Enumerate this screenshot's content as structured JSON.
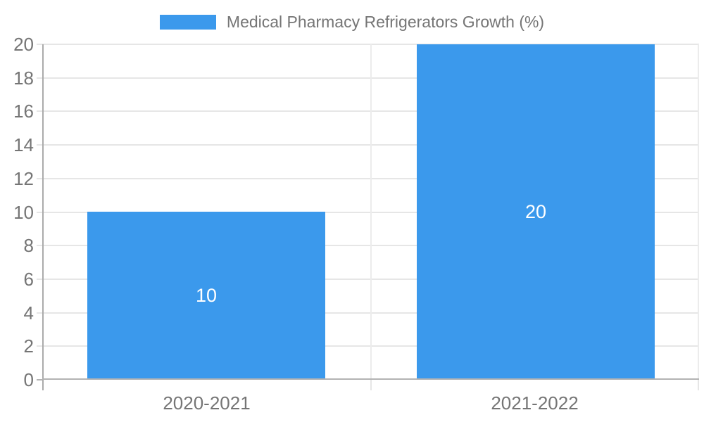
{
  "chart_data": {
    "type": "bar",
    "title": "Medical Pharmacy Refrigerators Growth (%)",
    "legend": {
      "position": "top",
      "entries": [
        "Medical Pharmacy Refrigerators Growth (%)"
      ]
    },
    "categories": [
      "2020-2021",
      "2021-2022"
    ],
    "values": [
      10,
      20
    ],
    "bar_value_labels": [
      "10",
      "20"
    ],
    "xlabel": "",
    "ylabel": "",
    "ylim": [
      0,
      20
    ],
    "yticks": [
      0,
      2,
      4,
      6,
      8,
      10,
      12,
      14,
      16,
      18,
      20
    ],
    "grid": "horizontal gridlines on",
    "colors": {
      "bar": "#3B99EC",
      "axis_text": "#757575",
      "bar_value_text": "#FFFFFF",
      "gridline": "#E6E6E6",
      "axis_line": "#ABABAB"
    }
  }
}
